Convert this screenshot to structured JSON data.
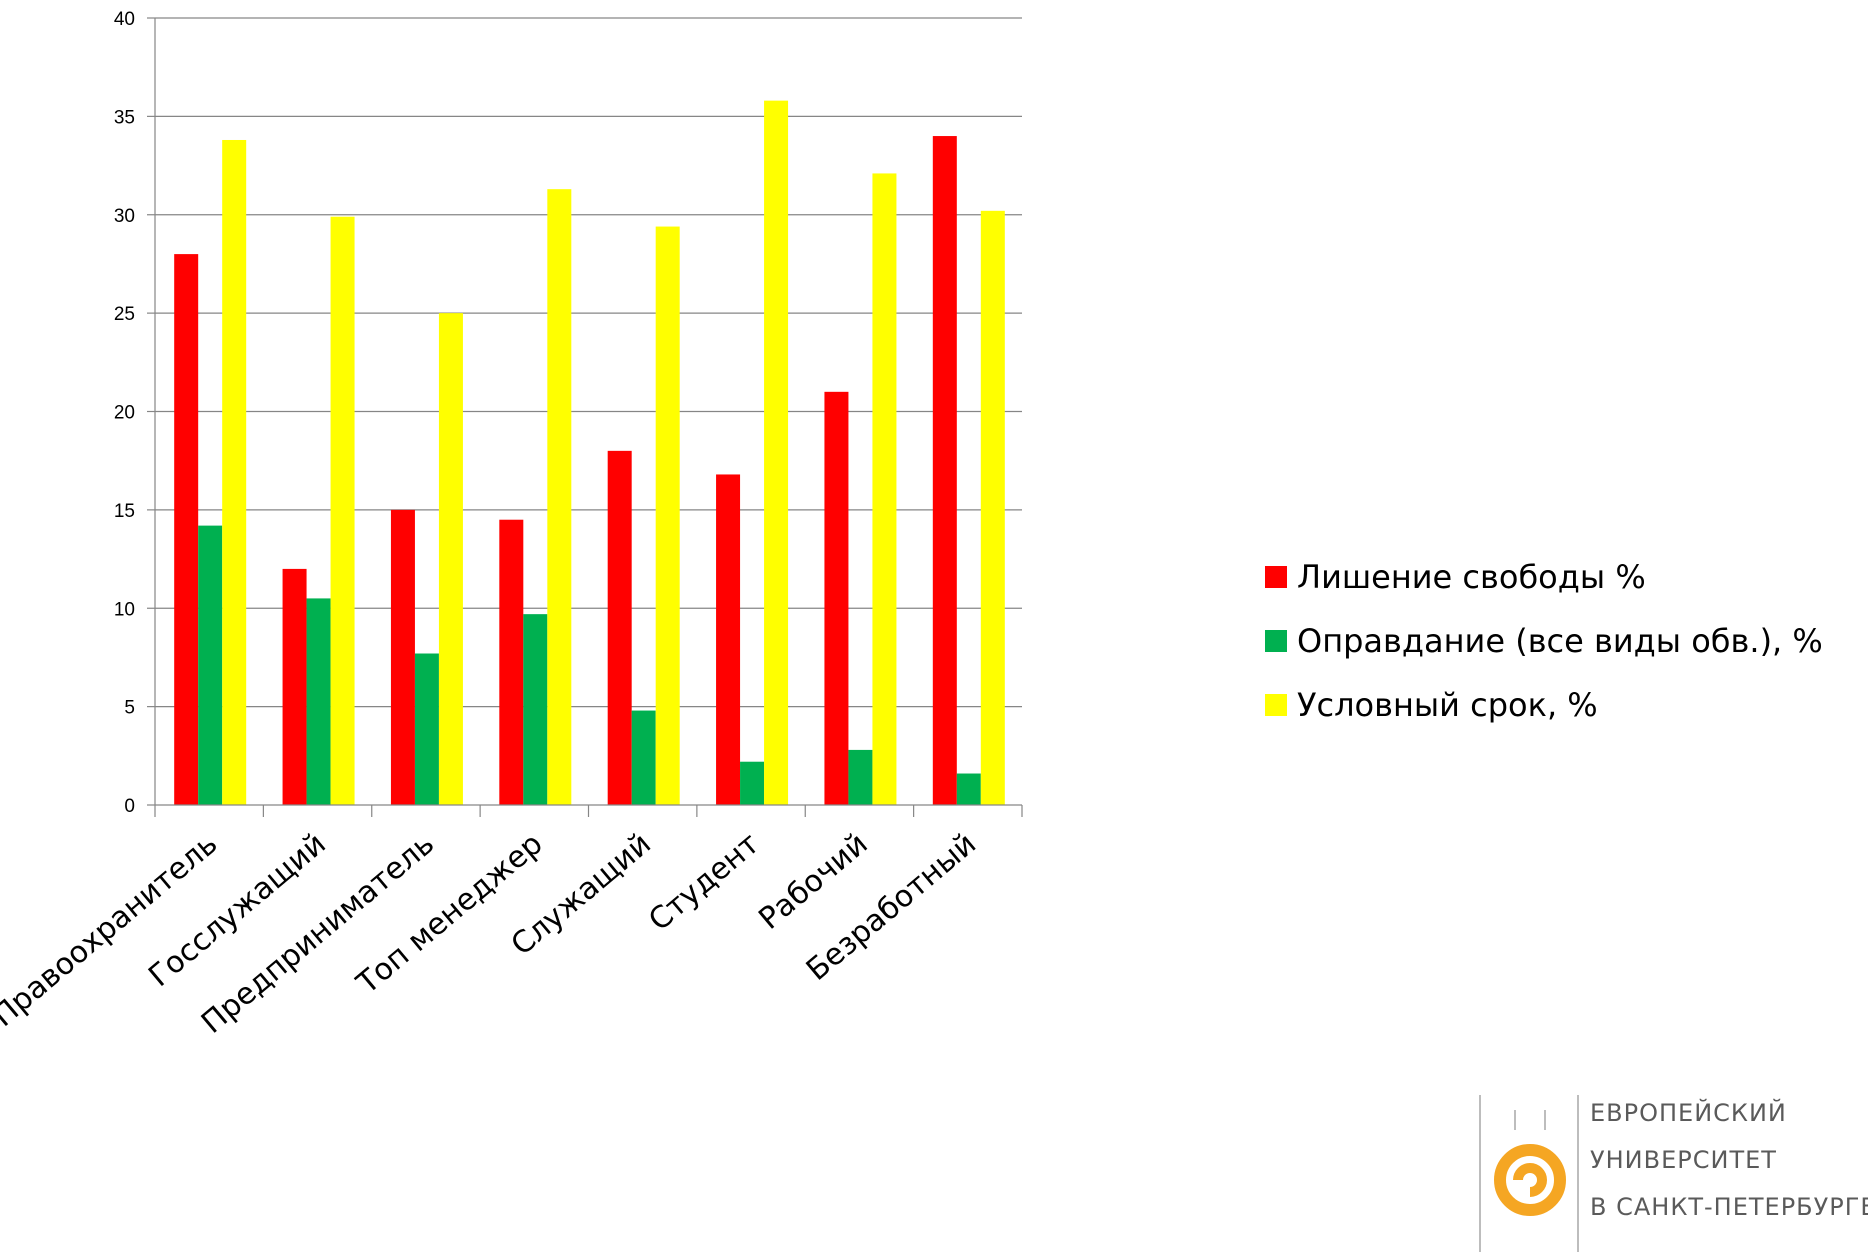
{
  "chart_data": {
    "type": "bar",
    "title": "",
    "xlabel": "",
    "ylabel": "",
    "ylim": [
      0,
      40
    ],
    "yticks": [
      "0",
      "5",
      "10",
      "15",
      "20",
      "25",
      "30",
      "35",
      "40"
    ],
    "grid": true,
    "legend_position": "right",
    "categories": [
      "Правоохранитель",
      "Госслужащий",
      "Предприниматель",
      "Топ менеджер",
      "Служащий",
      "Студент",
      "Рабочий",
      "Безработный"
    ],
    "series": [
      {
        "name": "Лишение свободы %",
        "color": "#ff0000",
        "values": [
          28,
          12,
          15,
          14.5,
          18,
          16.8,
          21,
          34
        ]
      },
      {
        "name": "Оправдание (все виды обв.), %",
        "color": "#00b050",
        "values": [
          14.2,
          10.5,
          7.7,
          9.7,
          4.8,
          2.2,
          2.8,
          1.6
        ]
      },
      {
        "name": "Условный срок, %",
        "color": "#ffff00",
        "values": [
          33.8,
          29.9,
          25,
          31.3,
          29.4,
          35.8,
          32.1,
          30.2
        ]
      }
    ]
  },
  "logo": {
    "line1": "ЕВРОПЕЙСКИЙ",
    "line2": "УНИВЕРСИТЕТ",
    "line3": "В САНКТ-ПЕТЕРБУРГЕ",
    "color": "#f5a623"
  }
}
